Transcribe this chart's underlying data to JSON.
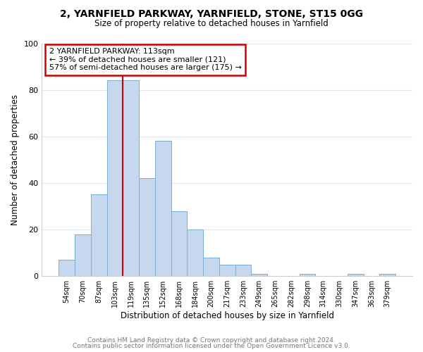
{
  "title1": "2, YARNFIELD PARKWAY, YARNFIELD, STONE, ST15 0GG",
  "title2": "Size of property relative to detached houses in Yarnfield",
  "xlabel": "Distribution of detached houses by size in Yarnfield",
  "ylabel": "Number of detached properties",
  "bar_labels": [
    "54sqm",
    "70sqm",
    "87sqm",
    "103sqm",
    "119sqm",
    "135sqm",
    "152sqm",
    "168sqm",
    "184sqm",
    "200sqm",
    "217sqm",
    "233sqm",
    "249sqm",
    "265sqm",
    "282sqm",
    "298sqm",
    "314sqm",
    "330sqm",
    "347sqm",
    "363sqm",
    "379sqm"
  ],
  "bar_heights": [
    7,
    18,
    35,
    84,
    84,
    42,
    58,
    28,
    20,
    8,
    5,
    5,
    1,
    0,
    0,
    1,
    0,
    0,
    1,
    0,
    1
  ],
  "bar_color": "#c5d8ed",
  "bar_edge_color": "#7aafd4",
  "vline_color": "#cc0000",
  "ylim": [
    0,
    100
  ],
  "yticks": [
    0,
    20,
    40,
    60,
    80,
    100
  ],
  "annotation_title": "2 YARNFIELD PARKWAY: 113sqm",
  "annotation_line1": "← 39% of detached houses are smaller (121)",
  "annotation_line2": "57% of semi-detached houses are larger (175) →",
  "footer1": "Contains HM Land Registry data © Crown copyright and database right 2024.",
  "footer2": "Contains public sector information licensed under the Open Government Licence v3.0.",
  "background_color": "#ffffff",
  "grid_color": "#dde8f0"
}
